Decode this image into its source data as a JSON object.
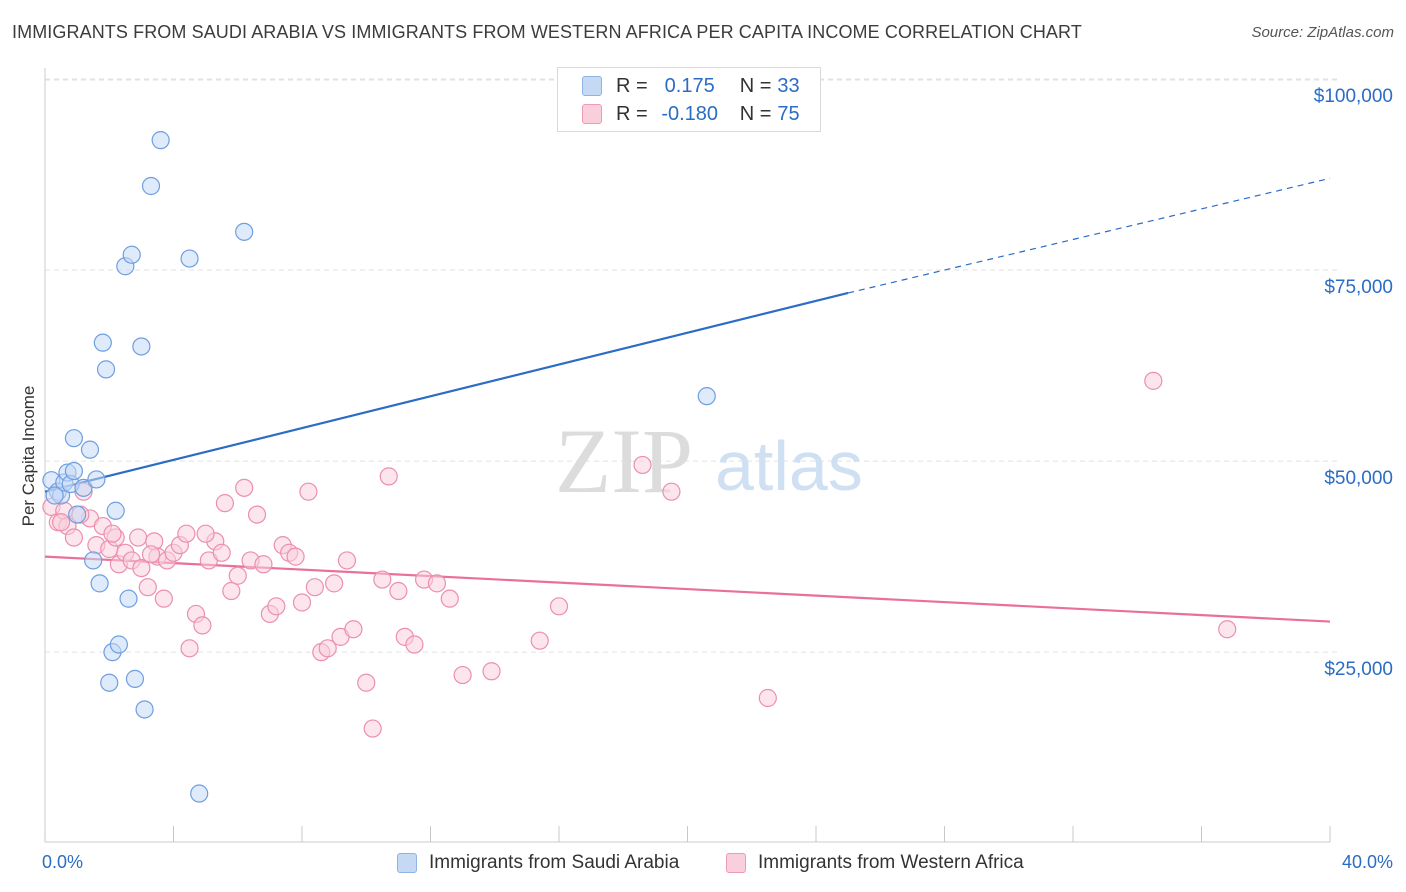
{
  "title": "IMMIGRANTS FROM SAUDI ARABIA VS IMMIGRANTS FROM WESTERN AFRICA PER CAPITA INCOME CORRELATION CHART",
  "source": "Source: ZipAtlas.com",
  "watermark": {
    "zip": "ZIP",
    "atlas": "atlas"
  },
  "legend": {
    "r_label": "R =",
    "n_label": "N =",
    "rows": [
      {
        "r": "0.175",
        "n": "33",
        "swatch_fill": "#c5d9f5",
        "swatch_stroke": "#8fb3e8"
      },
      {
        "r": "-0.180",
        "n": "75",
        "swatch_fill": "#f9cfdc",
        "swatch_stroke": "#ef9ab5"
      }
    ]
  },
  "bottom_legend": [
    {
      "label": "Immigrants from Saudi Arabia"
    },
    {
      "label": "Immigrants from Western Africa"
    }
  ],
  "chart_data": {
    "type": "scatter",
    "xlabel": "",
    "ylabel": "Per Capita Income",
    "xlim": [
      0,
      40
    ],
    "ylim": [
      0,
      103000
    ],
    "x_tick_labels": [
      "0.0%",
      "40.0%"
    ],
    "y_ticks": [
      25000,
      50000,
      75000,
      100000
    ],
    "y_tick_labels": [
      "$25,000",
      "$50,000",
      "$75,000",
      "$100,000"
    ],
    "grid": "horizontal dashed",
    "colors": {
      "blue": "#2b6cc4",
      "blue_fill": "#c5d9f5",
      "pink": "#e8709a",
      "pink_fill": "#f9cfdc",
      "axis_label": "#2b6cc4"
    },
    "series": [
      {
        "name": "Immigrants from Saudi Arabia",
        "color": "#2b6cc4",
        "trend": {
          "x": [
            0,
            25
          ],
          "y": [
            46000,
            72000
          ],
          "dashed_to": [
            40,
            87000
          ]
        },
        "points": [
          [
            0.2,
            47500
          ],
          [
            0.4,
            46000
          ],
          [
            0.5,
            45500
          ],
          [
            0.6,
            47200
          ],
          [
            0.7,
            48500
          ],
          [
            0.8,
            47000
          ],
          [
            0.9,
            48700
          ],
          [
            0.9,
            53000
          ],
          [
            1.0,
            43000
          ],
          [
            1.2,
            46500
          ],
          [
            1.4,
            51500
          ],
          [
            1.5,
            37000
          ],
          [
            1.6,
            47600
          ],
          [
            1.7,
            34000
          ],
          [
            1.8,
            65500
          ],
          [
            1.9,
            62000
          ],
          [
            2.0,
            21000
          ],
          [
            2.2,
            43500
          ],
          [
            2.1,
            25000
          ],
          [
            2.3,
            26000
          ],
          [
            2.5,
            75500
          ],
          [
            2.7,
            77000
          ],
          [
            2.6,
            32000
          ],
          [
            2.8,
            21500
          ],
          [
            3.1,
            17500
          ],
          [
            3.0,
            65000
          ],
          [
            3.3,
            86000
          ],
          [
            3.6,
            92000
          ],
          [
            4.5,
            76500
          ],
          [
            4.8,
            6500
          ],
          [
            6.2,
            80000
          ],
          [
            20.6,
            58500
          ],
          [
            0.3,
            45500
          ]
        ]
      },
      {
        "name": "Immigrants from Western Africa",
        "color": "#e8709a",
        "trend": {
          "x": [
            0,
            40
          ],
          "y": [
            37500,
            29000
          ]
        },
        "points": [
          [
            0.2,
            44000
          ],
          [
            0.4,
            42000
          ],
          [
            0.6,
            43500
          ],
          [
            0.7,
            41500
          ],
          [
            0.9,
            40000
          ],
          [
            1.2,
            46000
          ],
          [
            1.4,
            42500
          ],
          [
            1.6,
            39000
          ],
          [
            1.8,
            41500
          ],
          [
            2.0,
            38500
          ],
          [
            2.2,
            40000
          ],
          [
            2.3,
            36500
          ],
          [
            2.5,
            38000
          ],
          [
            2.7,
            37000
          ],
          [
            2.9,
            40000
          ],
          [
            3.0,
            36000
          ],
          [
            3.2,
            33500
          ],
          [
            3.4,
            39500
          ],
          [
            3.5,
            37500
          ],
          [
            3.7,
            32000
          ],
          [
            3.8,
            37000
          ],
          [
            4.0,
            38000
          ],
          [
            4.2,
            39000
          ],
          [
            4.4,
            40500
          ],
          [
            4.5,
            25500
          ],
          [
            4.7,
            30000
          ],
          [
            4.9,
            28500
          ],
          [
            5.1,
            37000
          ],
          [
            5.3,
            39500
          ],
          [
            5.5,
            38000
          ],
          [
            5.6,
            44500
          ],
          [
            5.8,
            33000
          ],
          [
            6.0,
            35000
          ],
          [
            6.2,
            46500
          ],
          [
            6.4,
            37000
          ],
          [
            6.6,
            43000
          ],
          [
            6.8,
            36500
          ],
          [
            7.0,
            30000
          ],
          [
            7.2,
            31000
          ],
          [
            7.4,
            39000
          ],
          [
            7.6,
            38000
          ],
          [
            7.8,
            37500
          ],
          [
            8.0,
            31500
          ],
          [
            8.2,
            46000
          ],
          [
            8.4,
            33500
          ],
          [
            8.6,
            25000
          ],
          [
            8.8,
            25500
          ],
          [
            9.0,
            34000
          ],
          [
            9.2,
            27000
          ],
          [
            9.4,
            37000
          ],
          [
            9.6,
            28000
          ],
          [
            10.0,
            21000
          ],
          [
            10.2,
            15000
          ],
          [
            10.5,
            34500
          ],
          [
            10.7,
            48000
          ],
          [
            11.0,
            33000
          ],
          [
            11.2,
            27000
          ],
          [
            11.5,
            26000
          ],
          [
            11.8,
            34500
          ],
          [
            12.2,
            34000
          ],
          [
            12.6,
            32000
          ],
          [
            13.0,
            22000
          ],
          [
            13.9,
            22500
          ],
          [
            15.4,
            26500
          ],
          [
            16.0,
            31000
          ],
          [
            18.6,
            49500
          ],
          [
            19.5,
            46000
          ],
          [
            22.5,
            19000
          ],
          [
            34.5,
            60500
          ],
          [
            36.8,
            28000
          ],
          [
            0.5,
            42000
          ],
          [
            1.1,
            43000
          ],
          [
            2.1,
            40500
          ],
          [
            3.3,
            37800
          ],
          [
            5.0,
            40500
          ]
        ]
      }
    ]
  }
}
